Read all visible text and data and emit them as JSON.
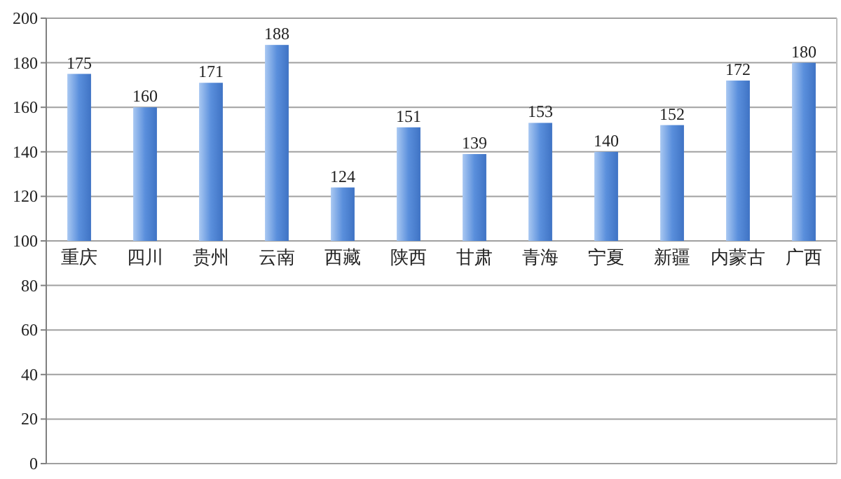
{
  "chart_data": {
    "type": "bar",
    "categories": [
      "重庆",
      "四川",
      "贵州",
      "云南",
      "西藏",
      "陕西",
      "甘肃",
      "青海",
      "宁夏",
      "新疆",
      "内蒙古",
      "广西"
    ],
    "base": [
      100,
      100,
      100,
      100,
      100,
      100,
      100,
      100,
      100,
      100,
      100,
      100
    ],
    "values": [
      75,
      60,
      71,
      88,
      24,
      51,
      39,
      53,
      40,
      52,
      72,
      80
    ],
    "value_labels": [
      "175",
      "160",
      "171",
      "188",
      "124",
      "151",
      "139",
      "153",
      "140",
      "152",
      "172",
      "180"
    ],
    "color": "#5a8fdc",
    "ylim": [
      0,
      200
    ],
    "yticks": [
      0,
      20,
      40,
      60,
      80,
      100,
      120,
      140,
      160,
      180,
      200
    ],
    "grid": "y"
  }
}
